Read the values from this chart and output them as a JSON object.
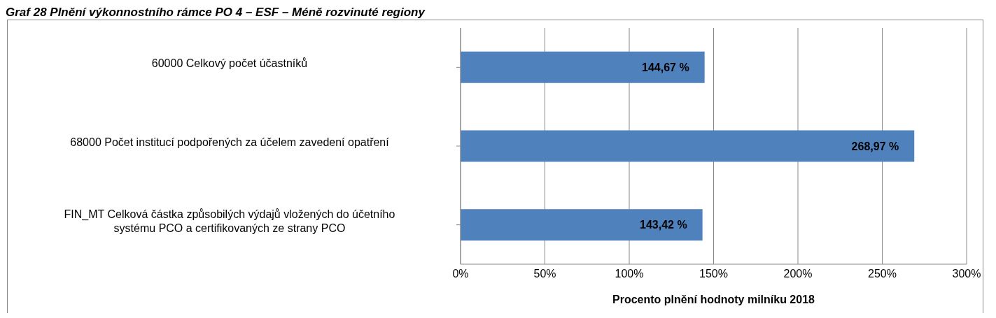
{
  "chart_data": {
    "type": "bar",
    "orientation": "horizontal",
    "title": "Graf 28 Plnění výkonnostního rámce PO 4 – ESF – Méně rozvinuté regiony",
    "xlabel": "Procento plnění hodnoty  milníku 2018",
    "categories": [
      "60000 Celkový počet účastníků",
      "68000 Počet institucí podpořených za účelem zavedení opatření",
      "FIN_MT Celková částka způsobilých výdajů vložených do účetního systému PCO a certifikovaných ze strany PCO"
    ],
    "values": [
      144.67,
      268.97,
      143.42
    ],
    "value_labels": [
      "144,67 %",
      "268,97 %",
      "143,42 %"
    ],
    "color": "#4f81bd",
    "xlim": [
      0,
      300
    ],
    "xticks": [
      {
        "value": 0,
        "label": "0%"
      },
      {
        "value": 50,
        "label": "50%"
      },
      {
        "value": 100,
        "label": "100%"
      },
      {
        "value": 150,
        "label": "150%"
      },
      {
        "value": 200,
        "label": "200%"
      },
      {
        "value": 250,
        "label": "250%"
      },
      {
        "value": 300,
        "label": "300%"
      }
    ],
    "grid": "x",
    "legend": false
  }
}
